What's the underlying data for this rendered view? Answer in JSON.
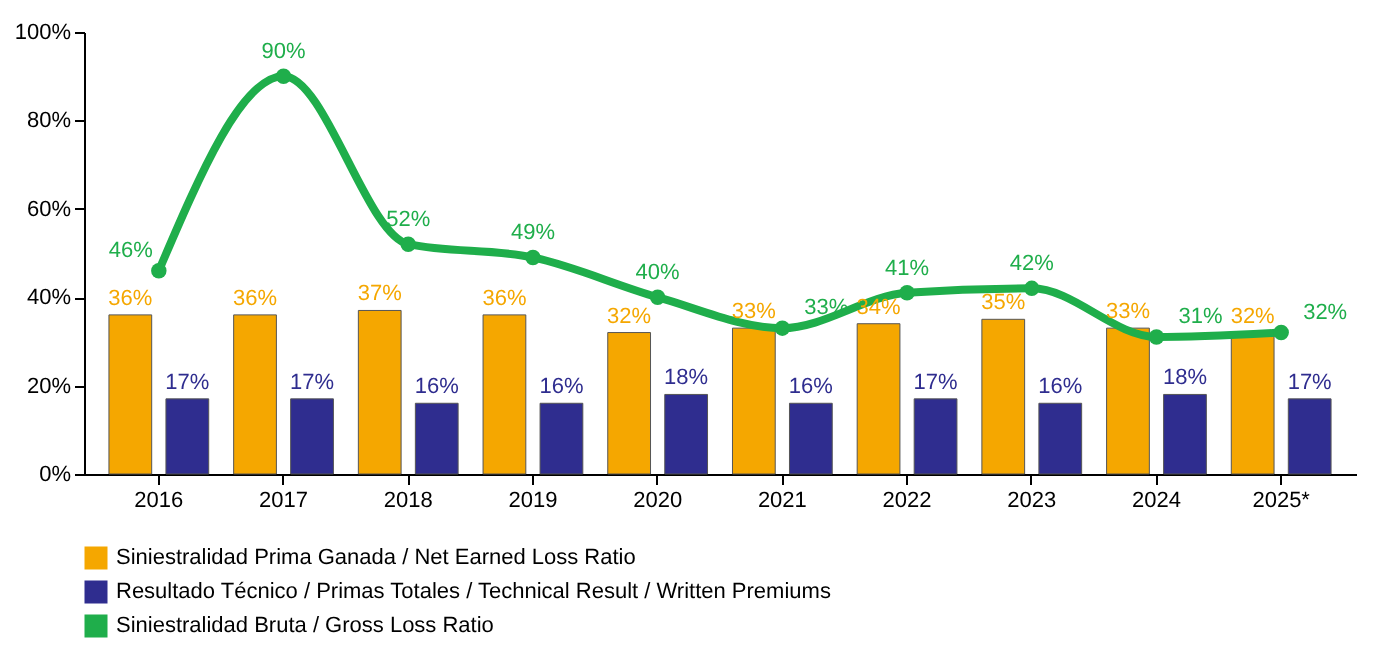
{
  "chart_data": {
    "type": "bar",
    "categories": [
      "2016",
      "2017",
      "2018",
      "2019",
      "2020",
      "2021",
      "2022",
      "2023",
      "2024",
      "2025*"
    ],
    "series": [
      {
        "name": "Siniestralidad Prima Ganada / Net Earned Loss Ratio",
        "type": "bar",
        "color": "#f5a700",
        "values": [
          36,
          36,
          37,
          36,
          32,
          33,
          34,
          35,
          33,
          32
        ],
        "value_labels": [
          "36%",
          "36%",
          "37%",
          "36%",
          "32%",
          "33%",
          "34%",
          "35%",
          "33%",
          "32%"
        ]
      },
      {
        "name": "Resultado Técnico / Primas Totales / Technical Result / Written Premiums",
        "type": "bar",
        "color": "#2f2d8f",
        "values": [
          17,
          17,
          16,
          16,
          18,
          16,
          17,
          16,
          18,
          17
        ],
        "value_labels": [
          "17%",
          "17%",
          "16%",
          "16%",
          "18%",
          "16%",
          "17%",
          "16%",
          "18%",
          "17%"
        ]
      },
      {
        "name": "Siniestralidad Bruta / Gross Loss Ratio",
        "type": "line",
        "color": "#1fae4b",
        "values": [
          46,
          90,
          52,
          49,
          40,
          33,
          41,
          42,
          31,
          32
        ],
        "value_labels": [
          "46%",
          "90%",
          "52%",
          "49%",
          "40%",
          "33%",
          "41%",
          "42%",
          "31%",
          "32%"
        ]
      }
    ],
    "ylim": [
      0,
      100
    ],
    "yticks": [
      {
        "value": 0,
        "label": "0%"
      },
      {
        "value": 20,
        "label": "20%"
      },
      {
        "value": 40,
        "label": "40%"
      },
      {
        "value": 60,
        "label": "60%"
      },
      {
        "value": 80,
        "label": "80%"
      },
      {
        "value": 100,
        "label": "100%"
      }
    ],
    "marker": "circle",
    "legend": "bottom"
  }
}
